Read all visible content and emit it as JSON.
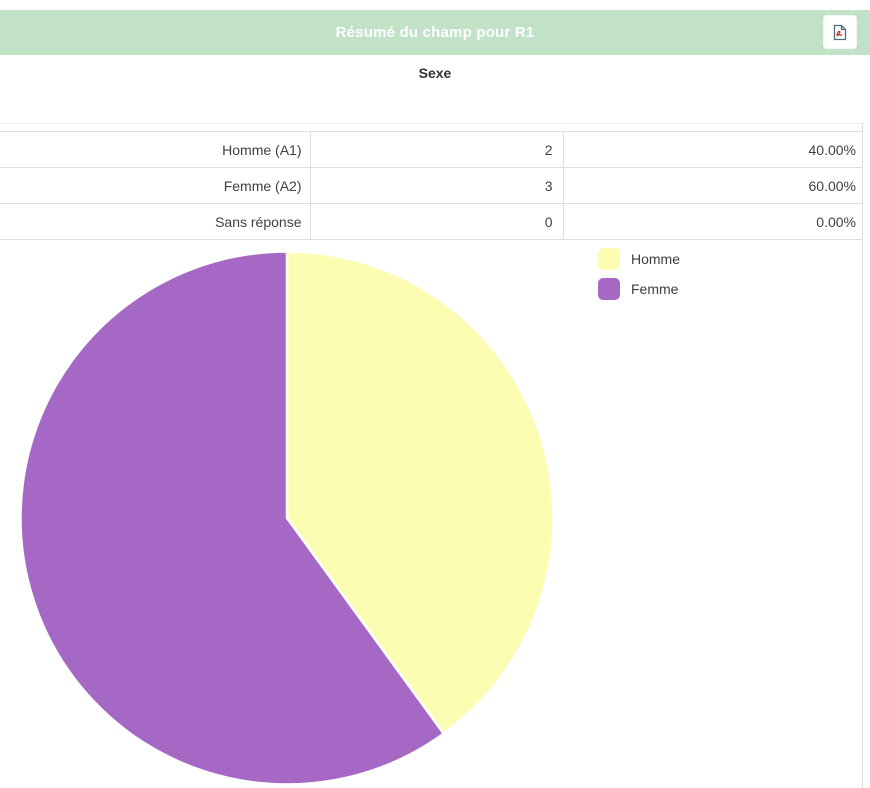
{
  "header": {
    "title": "Résumé du champ pour R1",
    "pdf_export_icon": "file-pdf-icon"
  },
  "question": {
    "title": "Sexe"
  },
  "table": {
    "rows": [
      {
        "label": "Homme (A1)",
        "count": "2",
        "percent": "40.00%"
      },
      {
        "label": "Femme (A2)",
        "count": "3",
        "percent": "60.00%"
      },
      {
        "label": "Sans réponse",
        "count": "0",
        "percent": "0.00%"
      }
    ]
  },
  "chart_data": {
    "type": "pie",
    "labels": [
      "Homme",
      "Femme"
    ],
    "values": [
      40,
      60
    ],
    "unit": "percent",
    "counts": [
      2,
      3
    ],
    "colors": [
      "#fcfcb2",
      "#a569c5"
    ],
    "slice_border_color": "#ffffff",
    "start_angle_deg": 0,
    "direction": "clockwise",
    "legend_position": "right",
    "title": "Sexe"
  },
  "colors": {
    "header_bg": "#c2e2c7",
    "header_text": "#ffffff",
    "table_border": "#dddddd",
    "text": "#404040"
  }
}
